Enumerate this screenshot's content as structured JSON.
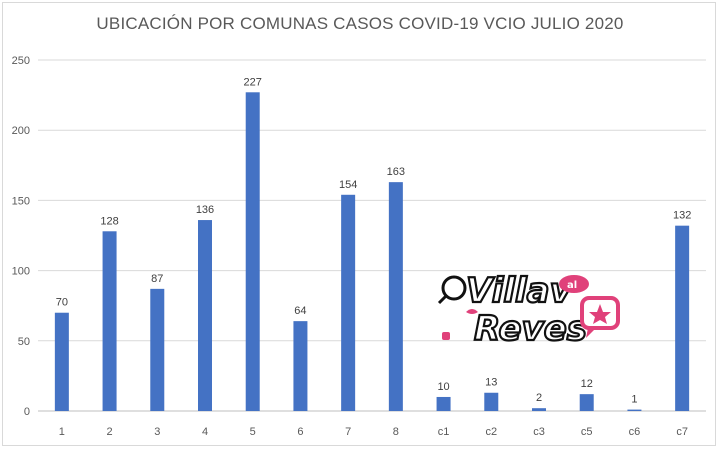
{
  "chart_data": {
    "type": "bar",
    "title": "UBICACIÓN POR COMUNAS CASOS COVID-19 VCIO JULIO 2020",
    "xlabel": "",
    "ylabel": "",
    "categories": [
      "1",
      "2",
      "3",
      "4",
      "5",
      "6",
      "7",
      "8",
      "c1",
      "c2",
      "c3",
      "c5",
      "c6",
      "c7"
    ],
    "values": [
      70,
      128,
      87,
      136,
      227,
      64,
      154,
      163,
      10,
      13,
      2,
      12,
      1,
      132
    ],
    "ylim": [
      0,
      250
    ],
    "yticks": [
      0,
      50,
      100,
      150,
      200,
      250
    ],
    "grid": true,
    "legend": "none",
    "bar_color": "#4472c4"
  },
  "watermark": {
    "line1": "Villav",
    "line2": "Reves",
    "small": "al",
    "color_main": "#111111",
    "color_accent": "#e0417a"
  }
}
